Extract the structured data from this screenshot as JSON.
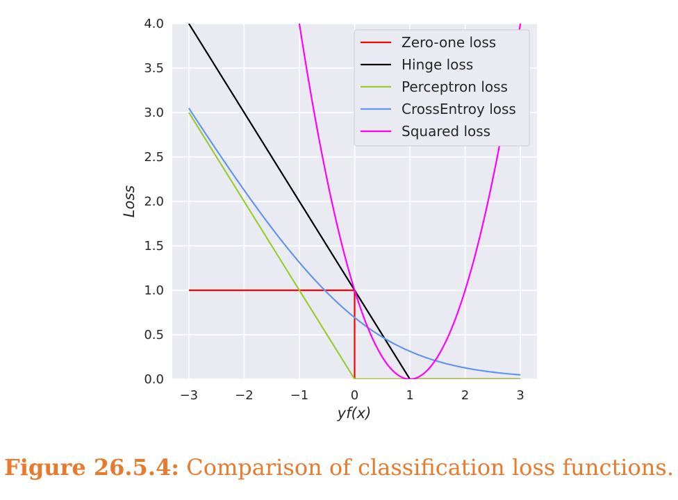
{
  "chart_data": {
    "type": "line",
    "title": "",
    "xlabel": "yf(x)",
    "ylabel": "Loss",
    "xlim": [
      -3.3,
      3.3
    ],
    "ylim": [
      0,
      4.0
    ],
    "xticks": [
      -3,
      -2,
      -1,
      0,
      1,
      2,
      3
    ],
    "xtick_labels": [
      "−3",
      "−2",
      "−1",
      "0",
      "1",
      "2",
      "3"
    ],
    "yticks": [
      0,
      0.5,
      1.0,
      1.5,
      2.0,
      2.5,
      3.0,
      3.5,
      4.0
    ],
    "ytick_labels": [
      "0.0",
      "0.5",
      "1.0",
      "1.5",
      "2.0",
      "2.5",
      "3.0",
      "3.5",
      "4.0"
    ],
    "grid": true,
    "legend_position": "top-right",
    "background_color": "#eaeaf2",
    "series": [
      {
        "name": "Zero-one loss",
        "color": "#ff0000",
        "x": [
          -3,
          0,
          0,
          3
        ],
        "y": [
          1,
          1,
          0,
          0
        ]
      },
      {
        "name": "Hinge loss",
        "color": "#000000",
        "x": [
          -3,
          -2,
          -1,
          0,
          1,
          2,
          3
        ],
        "y": [
          4,
          3,
          2,
          1,
          0,
          0,
          0
        ]
      },
      {
        "name": "Perceptron loss",
        "color": "#9acd32",
        "x": [
          -3,
          -2,
          -1,
          0,
          1,
          2,
          3
        ],
        "y": [
          3,
          2,
          1,
          0,
          0,
          0,
          0
        ]
      },
      {
        "name": "CrossEntroy loss",
        "color": "#6495ed",
        "x": [
          -3.0,
          -2.5,
          -2.0,
          -1.5,
          -1.0,
          -0.5,
          0.0,
          0.5,
          1.0,
          1.5,
          2.0,
          2.5,
          3.0
        ],
        "y": [
          3.049,
          2.579,
          2.127,
          1.701,
          1.313,
          0.974,
          0.693,
          0.474,
          0.313,
          0.201,
          0.127,
          0.079,
          0.049
        ]
      },
      {
        "name": "Squared loss",
        "color": "#ff00ff",
        "x": [
          -1.0,
          -0.75,
          -0.5,
          -0.25,
          0.0,
          0.25,
          0.5,
          0.75,
          1.0,
          1.25,
          1.5,
          1.75,
          2.0,
          2.25,
          2.5,
          2.75,
          3.0
        ],
        "y": [
          4.0,
          3.0625,
          2.25,
          1.5625,
          1.0,
          0.5625,
          0.25,
          0.0625,
          0.0,
          0.0625,
          0.25,
          0.5625,
          1.0,
          1.5625,
          2.25,
          3.0625,
          4.0
        ]
      }
    ]
  },
  "caption": {
    "label": "Figure 26.5.4:",
    "text": "Comparison of classification loss functions."
  }
}
